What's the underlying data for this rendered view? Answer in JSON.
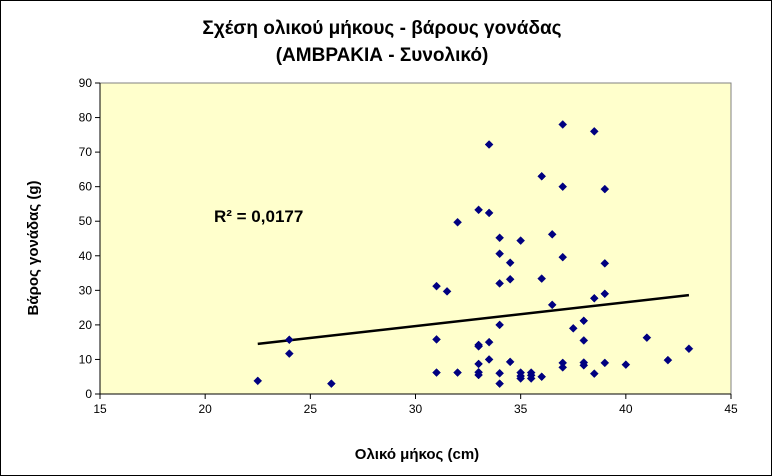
{
  "chart_data": {
    "type": "scatter",
    "title": "Σχέση ολικού  μήκους - βάρους γονάδας",
    "subtitle": "(ΑΜΒΡΑΚΙΑ  - Συνολικό)",
    "xlabel": "Ολικό μήκος (cm)",
    "ylabel": "Βάρος γονάδας (g)",
    "xlim": [
      15,
      45
    ],
    "ylim": [
      0,
      90
    ],
    "xticks": [
      "15",
      "20",
      "25",
      "30",
      "35",
      "40",
      "45"
    ],
    "yticks": [
      "0",
      "10",
      "20",
      "30",
      "40",
      "50",
      "60",
      "70",
      "80",
      "90"
    ],
    "grid": false,
    "plot_background": "#FFFFCC",
    "marker_color": "#000080",
    "points": [
      [
        22.5,
        3.8
      ],
      [
        24,
        15.7
      ],
      [
        24,
        11.7
      ],
      [
        26,
        3
      ],
      [
        31,
        31.2
      ],
      [
        31,
        15.8
      ],
      [
        31,
        6.2
      ],
      [
        31.5,
        29.7
      ],
      [
        32,
        49.7
      ],
      [
        32,
        6.2
      ],
      [
        33,
        53.3
      ],
      [
        33,
        14.2
      ],
      [
        33,
        13.8
      ],
      [
        33,
        8.7
      ],
      [
        33,
        6.3
      ],
      [
        33,
        5.5
      ],
      [
        33.5,
        72.2
      ],
      [
        33.5,
        52.4
      ],
      [
        33.5,
        15
      ],
      [
        33.5,
        10
      ],
      [
        34,
        45.2
      ],
      [
        34,
        40.6
      ],
      [
        34,
        32
      ],
      [
        34,
        20
      ],
      [
        34,
        6
      ],
      [
        34,
        3
      ],
      [
        34.5,
        38
      ],
      [
        34.5,
        33.2
      ],
      [
        34.5,
        9.3
      ],
      [
        35,
        44.4
      ],
      [
        35,
        6.2
      ],
      [
        35,
        5.2
      ],
      [
        35,
        4.5
      ],
      [
        35.5,
        6.2
      ],
      [
        35.5,
        5.4
      ],
      [
        35.5,
        4.5
      ],
      [
        36,
        63
      ],
      [
        36,
        33.4
      ],
      [
        36,
        5
      ],
      [
        36.5,
        46.2
      ],
      [
        36.5,
        25.8
      ],
      [
        37,
        78
      ],
      [
        37,
        60
      ],
      [
        37,
        39.6
      ],
      [
        37,
        9
      ],
      [
        37,
        7.7
      ],
      [
        37.5,
        19
      ],
      [
        38,
        21.2
      ],
      [
        38,
        15.5
      ],
      [
        38,
        9.1
      ],
      [
        38,
        8.3
      ],
      [
        38.5,
        76
      ],
      [
        38.5,
        27.7
      ],
      [
        38.5,
        5.9
      ],
      [
        39,
        59.3
      ],
      [
        39,
        37.8
      ],
      [
        39,
        29
      ],
      [
        39,
        9
      ],
      [
        40,
        8.5
      ],
      [
        41,
        16.3
      ],
      [
        42,
        9.8
      ],
      [
        43,
        13.1
      ]
    ],
    "trendline": {
      "type": "linear",
      "x": [
        22.5,
        43
      ],
      "y": [
        14.5,
        28.6
      ],
      "label": "R² = 0,0177"
    }
  }
}
